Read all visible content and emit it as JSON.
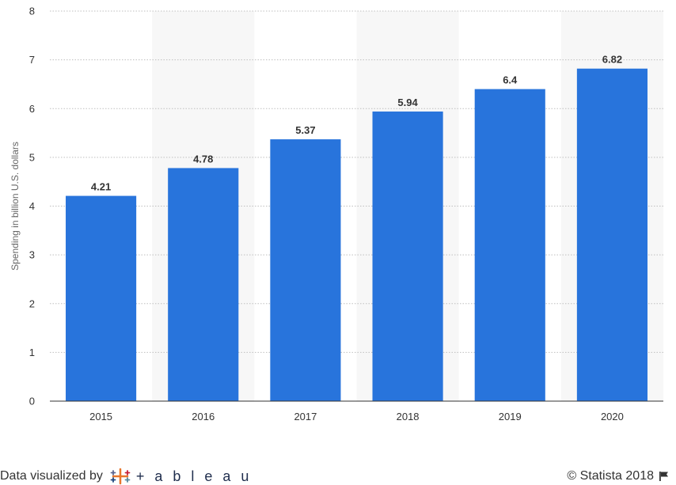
{
  "chart_data": {
    "type": "bar",
    "categories": [
      "2015",
      "2016",
      "2017",
      "2018",
      "2019",
      "2020"
    ],
    "values": [
      4.21,
      4.78,
      5.37,
      5.94,
      6.4,
      6.82
    ],
    "value_labels": [
      "4.21",
      "4.78",
      "5.37",
      "5.94",
      "6.4",
      "6.82"
    ],
    "ylabel": "Spending in billion U.S. dollars",
    "xlabel": "",
    "ylim": [
      0,
      8
    ],
    "yticks": [
      "0",
      "1",
      "2",
      "3",
      "4",
      "5",
      "6",
      "7",
      "8"
    ],
    "grid": true,
    "bar_color": "#2874dc",
    "band_color": "#f7f7f7"
  },
  "footer": {
    "credit_prefix": "Data visualized by",
    "brand": "+ a b l e a u",
    "copyright": "© Statista 2018"
  },
  "icons": {
    "brand_logo": "tableau-logo-icon",
    "flag": "flag-icon"
  }
}
